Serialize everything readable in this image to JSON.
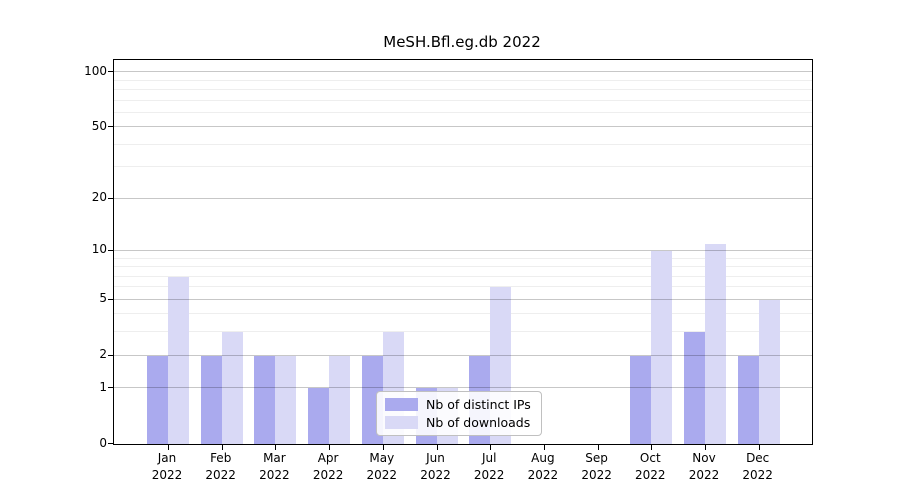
{
  "title": "MeSH.Bfl.eg.db 2022",
  "legend": {
    "items": [
      {
        "label": "Nb of distinct IPs",
        "color": "#aaaaee"
      },
      {
        "label": "Nb of downloads",
        "color": "#d9d9f6"
      }
    ]
  },
  "axes": {
    "y_tick_labels": [
      "100",
      "50",
      "20",
      "10",
      "5",
      "2",
      "1",
      "0"
    ],
    "x_tick_months": [
      "Jan",
      "Feb",
      "Mar",
      "Apr",
      "May",
      "Jun",
      "Jul",
      "Aug",
      "Sep",
      "Oct",
      "Nov",
      "Dec"
    ],
    "x_tick_year": "2022"
  },
  "chart_data": {
    "type": "bar",
    "title": "MeSH.Bfl.eg.db 2022",
    "xlabel": "",
    "ylabel": "",
    "categories": [
      "Jan 2022",
      "Feb 2022",
      "Mar 2022",
      "Apr 2022",
      "May 2022",
      "Jun 2022",
      "Jul 2022",
      "Aug 2022",
      "Sep 2022",
      "Oct 2022",
      "Nov 2022",
      "Dec 2022"
    ],
    "series": [
      {
        "name": "Nb of distinct IPs",
        "color": "#aaaaee",
        "values": [
          2,
          2,
          2,
          1,
          2,
          1,
          2,
          0,
          0,
          2,
          3,
          2
        ]
      },
      {
        "name": "Nb of downloads",
        "color": "#d9d9f6",
        "values": [
          7,
          3,
          2,
          2,
          3,
          1,
          6,
          0,
          0,
          10,
          11,
          5
        ]
      }
    ],
    "yscale": "log1p",
    "ylim": [
      0,
      115
    ],
    "yticks": [
      100,
      50,
      20,
      10,
      5,
      2,
      1,
      0
    ],
    "minor_gridlines": [
      90,
      80,
      70,
      60,
      40,
      30,
      9,
      8,
      7,
      6,
      4,
      3
    ],
    "grid": true,
    "legend_position": "lower center-right inside"
  }
}
